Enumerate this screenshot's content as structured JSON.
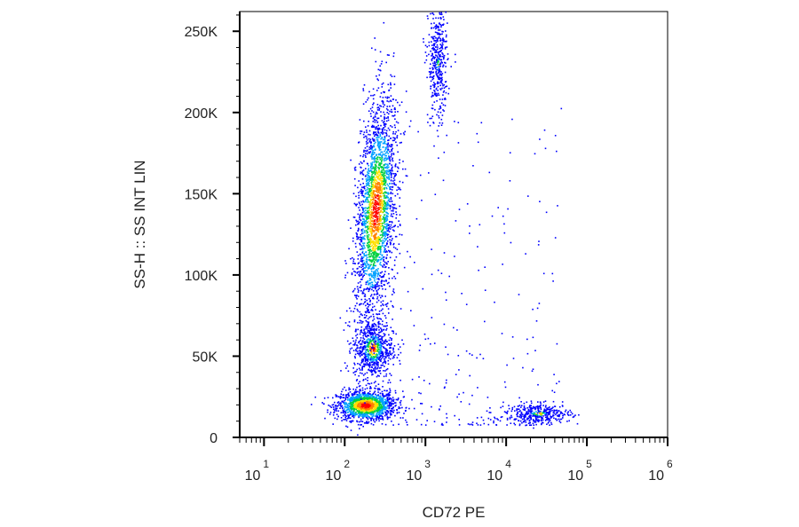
{
  "chart_data": {
    "type": "scatter",
    "plot_style": "flow-cytometry pseudocolor density dot plot",
    "xlabel": "CD72 PE",
    "ylabel": "SS-H :: SS INT LIN",
    "x_scale": "log",
    "xlim": [
      5,
      1000000
    ],
    "ylim": [
      0,
      262144
    ],
    "x_ticks": [
      {
        "value": 10,
        "base": "10",
        "exp": "1"
      },
      {
        "value": 100,
        "base": "10",
        "exp": "2"
      },
      {
        "value": 1000,
        "base": "10",
        "exp": "3"
      },
      {
        "value": 10000,
        "base": "10",
        "exp": "4"
      },
      {
        "value": 100000,
        "base": "10",
        "exp": "5"
      },
      {
        "value": 1000000,
        "base": "10",
        "exp": "6"
      }
    ],
    "y_ticks": [
      {
        "value": 0,
        "label": "0"
      },
      {
        "value": 50000,
        "label": "50K"
      },
      {
        "value": 100000,
        "label": "100K"
      },
      {
        "value": 150000,
        "label": "150K"
      },
      {
        "value": 200000,
        "label": "200K"
      },
      {
        "value": 250000,
        "label": "250K"
      }
    ],
    "grid": false,
    "legend": "none",
    "density_colors": [
      "#0000ff",
      "#00a0ff",
      "#00d040",
      "#ffe000",
      "#ff8000",
      "#ff0000"
    ],
    "populations": [
      {
        "center_x": 180,
        "center_y": 20000,
        "spread_logx": 0.18,
        "spread_y": 4500,
        "peak": "red"
      },
      {
        "center_x": 220,
        "center_y": 55000,
        "spread_logx": 0.12,
        "spread_y": 9000,
        "peak": "green"
      },
      {
        "center_x": 240,
        "center_y": 140000,
        "spread_logx": 0.12,
        "spread_y": 35000,
        "peak": "orange"
      },
      {
        "center_x": 1400,
        "center_y": 230000,
        "spread_logx": 0.06,
        "spread_y": 18000,
        "peak": "blue"
      },
      {
        "center_x": 25000,
        "center_y": 15000,
        "spread_logx": 0.2,
        "spread_y": 3000,
        "peak": "cyan"
      }
    ]
  }
}
